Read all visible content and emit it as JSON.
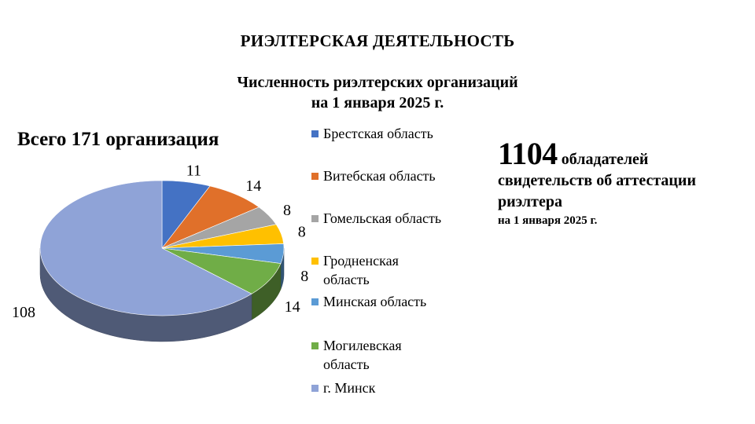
{
  "header": {
    "main_title": "РИЭЛТЕРСКАЯ ДЕЯТЕЛЬНОСТЬ",
    "chart_title_line1": "Численность риэлтерских организаций",
    "chart_title_line2": "на 1 января 2025 г."
  },
  "total_label": "Всего 171 организация",
  "stats": {
    "number": "1104",
    "word1": "обладателей",
    "line2": "свидетельств об аттестации",
    "line3": "риэлтера",
    "line4": "на 1 января 2025 г."
  },
  "chart_data": {
    "type": "pie",
    "title": "Численность риэлтерских организаций на 1 января 2025 г.",
    "legend_position": "right",
    "labels": [
      "Брестская область",
      "Витебская область",
      "Гомельская область",
      "Гродненская область",
      "Минская область",
      "Могилевская область",
      "г. Минск"
    ],
    "values": [
      11,
      14,
      8,
      8,
      8,
      14,
      108
    ],
    "colors": [
      "#4472C4",
      "#E0702A",
      "#A5A5A5",
      "#FFC000",
      "#5B9BD5",
      "#70AD47",
      "#8FA3D7"
    ],
    "data_labels": [
      "11",
      "14",
      "8",
      "8",
      "8",
      "14",
      "108"
    ]
  },
  "legend": [
    {
      "line1": "Брестская область",
      "line2": "",
      "color": "#4472C4"
    },
    {
      "line1": "Витебская область",
      "line2": "",
      "color": "#E0702A"
    },
    {
      "line1": "Гомельская область",
      "line2": "",
      "color": "#A5A5A5"
    },
    {
      "line1": "Гродненская",
      "line2": "область",
      "color": "#FFC000"
    },
    {
      "line1": "Минская область",
      "line2": "",
      "color": "#5B9BD5"
    },
    {
      "line1": "Могилевская",
      "line2": "область",
      "color": "#70AD47"
    },
    {
      "line1": "г. Минск",
      "line2": "",
      "color": "#8FA3D7"
    }
  ]
}
